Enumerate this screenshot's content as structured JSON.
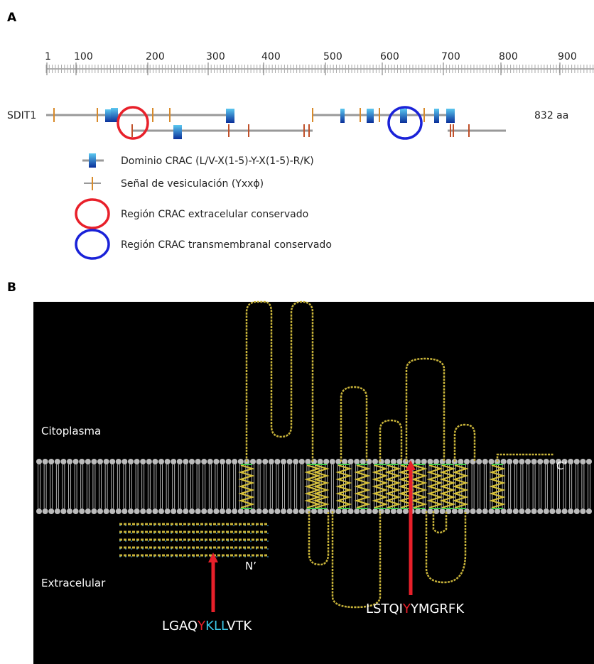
{
  "panel_a": {
    "label": "A",
    "ruler": [
      1,
      100,
      200,
      300,
      400,
      500,
      600,
      700,
      800,
      900
    ],
    "protein": {
      "name": "SDIT1",
      "length": "832 aa"
    },
    "legend": [
      "Dominio CRAC (L/V-X(1-5)-Y-X(1-5)-R/K)",
      "Señal de vesiculación (Yxxϕ)",
      "Región CRAC extracelular conservado",
      "Región CRAC transmembranal conservado"
    ]
  },
  "panel_b": {
    "label": "B",
    "cytoplasm": "Citoplasma",
    "extracellular": "Extracelular",
    "n_term": "N’",
    "c_term": "C’",
    "motif_extracellular": [
      "LGAQ",
      "Y",
      "KLL",
      "VTK"
    ],
    "motif_transmembrane": [
      "LSTQI",
      "Y",
      "YMGRFK"
    ]
  }
}
